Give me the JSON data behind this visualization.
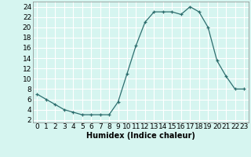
{
  "x": [
    0,
    1,
    2,
    3,
    4,
    5,
    6,
    7,
    8,
    9,
    10,
    11,
    12,
    13,
    14,
    15,
    16,
    17,
    18,
    19,
    20,
    21,
    22,
    23
  ],
  "y": [
    7,
    6,
    5,
    4,
    3.5,
    3,
    3,
    3,
    3,
    5.5,
    11,
    16.5,
    21,
    23,
    23,
    23,
    22.5,
    24,
    23,
    20,
    13.5,
    10.5,
    8,
    8
  ],
  "line_color": "#2d6e6e",
  "marker_color": "#2d6e6e",
  "bg_color": "#d6f5f0",
  "grid_color": "#ffffff",
  "xlabel": "Humidex (Indice chaleur)",
  "xlim": [
    -0.5,
    23.5
  ],
  "ylim": [
    1.5,
    25
  ],
  "yticks": [
    2,
    4,
    6,
    8,
    10,
    12,
    14,
    16,
    18,
    20,
    22,
    24
  ],
  "xticks": [
    0,
    1,
    2,
    3,
    4,
    5,
    6,
    7,
    8,
    9,
    10,
    11,
    12,
    13,
    14,
    15,
    16,
    17,
    18,
    19,
    20,
    21,
    22,
    23
  ],
  "label_fontsize": 7,
  "tick_fontsize": 6.5
}
